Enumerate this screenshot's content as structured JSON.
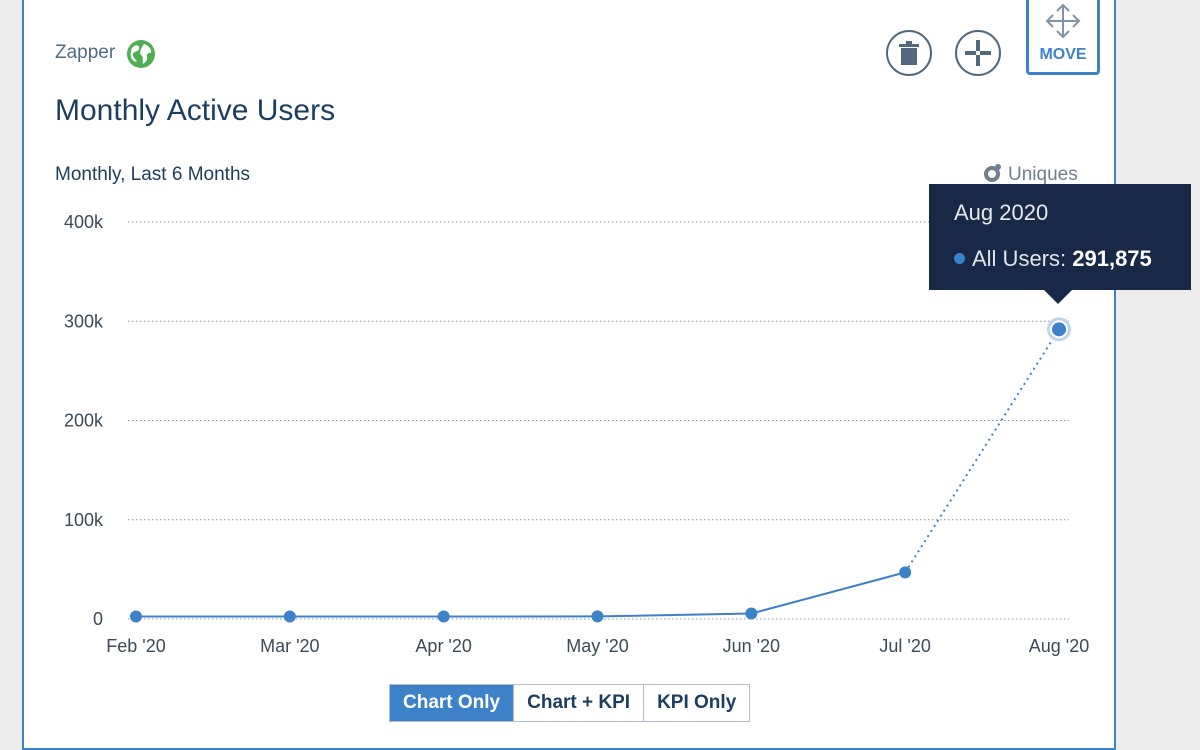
{
  "card": {
    "source_name": "Zapper",
    "title": "Monthly Active Users",
    "subtitle": "Monthly, Last 6 Months",
    "metric_label": "Uniques",
    "move_label": "MOVE"
  },
  "icons": {
    "source": "globe-icon",
    "delete": "trash-icon",
    "resize": "resize-icon",
    "move": "move-arrows-icon",
    "metric": "uniques-icon"
  },
  "colors": {
    "accent": "#3d82c9",
    "title": "#1c3d5d",
    "tooltip_bg": "#172947",
    "globe": "#4caf50"
  },
  "tooltip": {
    "date": "Aug 2020",
    "series": "All Users:",
    "value": "291,875"
  },
  "view_toggle": {
    "options": [
      "Chart Only",
      "Chart + KPI",
      "KPI Only"
    ],
    "selected": "Chart Only"
  },
  "chart_data": {
    "type": "line",
    "x": [
      "Feb '20",
      "Mar '20",
      "Apr '20",
      "May '20",
      "Jun '20",
      "Jul '20",
      "Aug '20"
    ],
    "series": [
      {
        "name": "All Users",
        "values": [
          2500,
          2500,
          2500,
          2600,
          5500,
          47000,
          291875
        ],
        "partial_last_point": true
      }
    ],
    "yticks": [
      "0",
      "100k",
      "200k",
      "300k",
      "400k"
    ],
    "ylim": [
      0,
      400000
    ],
    "grid": true,
    "legend": "none"
  }
}
